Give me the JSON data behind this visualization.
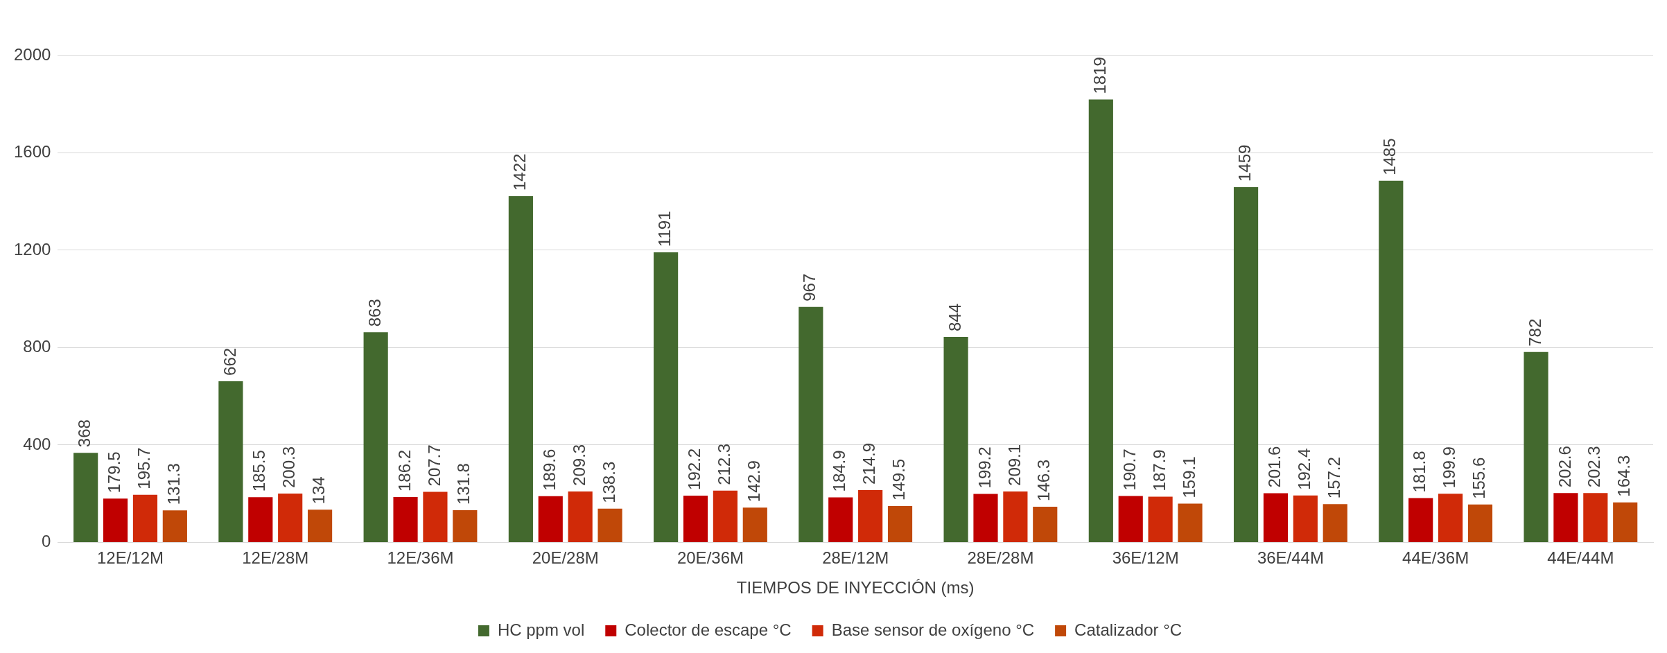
{
  "chart_data": {
    "type": "bar",
    "xlabel": "TIEMPOS DE INYECCIÓN (ms)",
    "categories": [
      "12E/12M",
      "12E/28M",
      "12E/36M",
      "20E/28M",
      "20E/36M",
      "28E/12M",
      "28E/28M",
      "36E/12M",
      "36E/44M",
      "44E/36M",
      "44E/44M"
    ],
    "series": [
      {
        "name": "HC ppm vol",
        "color": "#43692e",
        "values": [
          368,
          662,
          863,
          1422,
          1191,
          967,
          844,
          1819,
          1459,
          1485,
          782
        ]
      },
      {
        "name": "Colector de escape °C",
        "color": "#c00000",
        "values": [
          179.5,
          185.5,
          186.2,
          189.6,
          192.2,
          184.9,
          199.2,
          190.7,
          201.6,
          181.8,
          202.6
        ]
      },
      {
        "name": "Base sensor de oxígeno °C",
        "color": "#d02a08",
        "values": [
          195.7,
          200.3,
          207.7,
          209.3,
          212.3,
          214.9,
          209.1,
          187.9,
          192.4,
          199.9,
          202.3
        ]
      },
      {
        "name": "Catalizador °C",
        "color": "#c04808",
        "values": [
          131.3,
          134,
          131.8,
          138.3,
          142.9,
          149.5,
          146.3,
          159.1,
          157.2,
          155.6,
          164.3
        ]
      }
    ],
    "ylim": [
      0,
      2000
    ],
    "yticks": [
      0,
      400,
      800,
      1200,
      1600,
      2000
    ],
    "grid": "y",
    "legend": "bottom",
    "data_labels": true
  }
}
